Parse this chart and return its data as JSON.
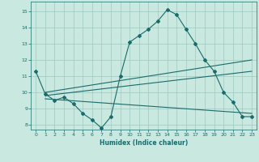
{
  "xlabel": "Humidex (Indice chaleur)",
  "background_color": "#c8e8e0",
  "grid_color": "#a0c8c0",
  "line_color": "#1a6b6b",
  "xlim": [
    -0.5,
    23.5
  ],
  "ylim": [
    7.7,
    15.6
  ],
  "yticks": [
    8,
    9,
    10,
    11,
    12,
    13,
    14,
    15
  ],
  "xticks": [
    0,
    1,
    2,
    3,
    4,
    5,
    6,
    7,
    8,
    9,
    10,
    11,
    12,
    13,
    14,
    15,
    16,
    17,
    18,
    19,
    20,
    21,
    22,
    23
  ],
  "line1_x": [
    0,
    1,
    2,
    3,
    4,
    5,
    6,
    7,
    8,
    9,
    10,
    11,
    12,
    13,
    14,
    15,
    16,
    17,
    18,
    19,
    20,
    21,
    22,
    23
  ],
  "line1_y": [
    11.3,
    9.9,
    9.5,
    9.7,
    9.3,
    8.7,
    8.3,
    7.8,
    8.5,
    11.0,
    13.1,
    13.5,
    13.9,
    14.4,
    15.1,
    14.8,
    13.9,
    13.0,
    12.0,
    11.3,
    10.0,
    9.4,
    8.5,
    8.5
  ],
  "line2_x": [
    1,
    23
  ],
  "line2_y": [
    10.0,
    12.0
  ],
  "line3_x": [
    1,
    23
  ],
  "line3_y": [
    9.8,
    11.3
  ],
  "line4_x": [
    1,
    23
  ],
  "line4_y": [
    9.6,
    8.7
  ]
}
